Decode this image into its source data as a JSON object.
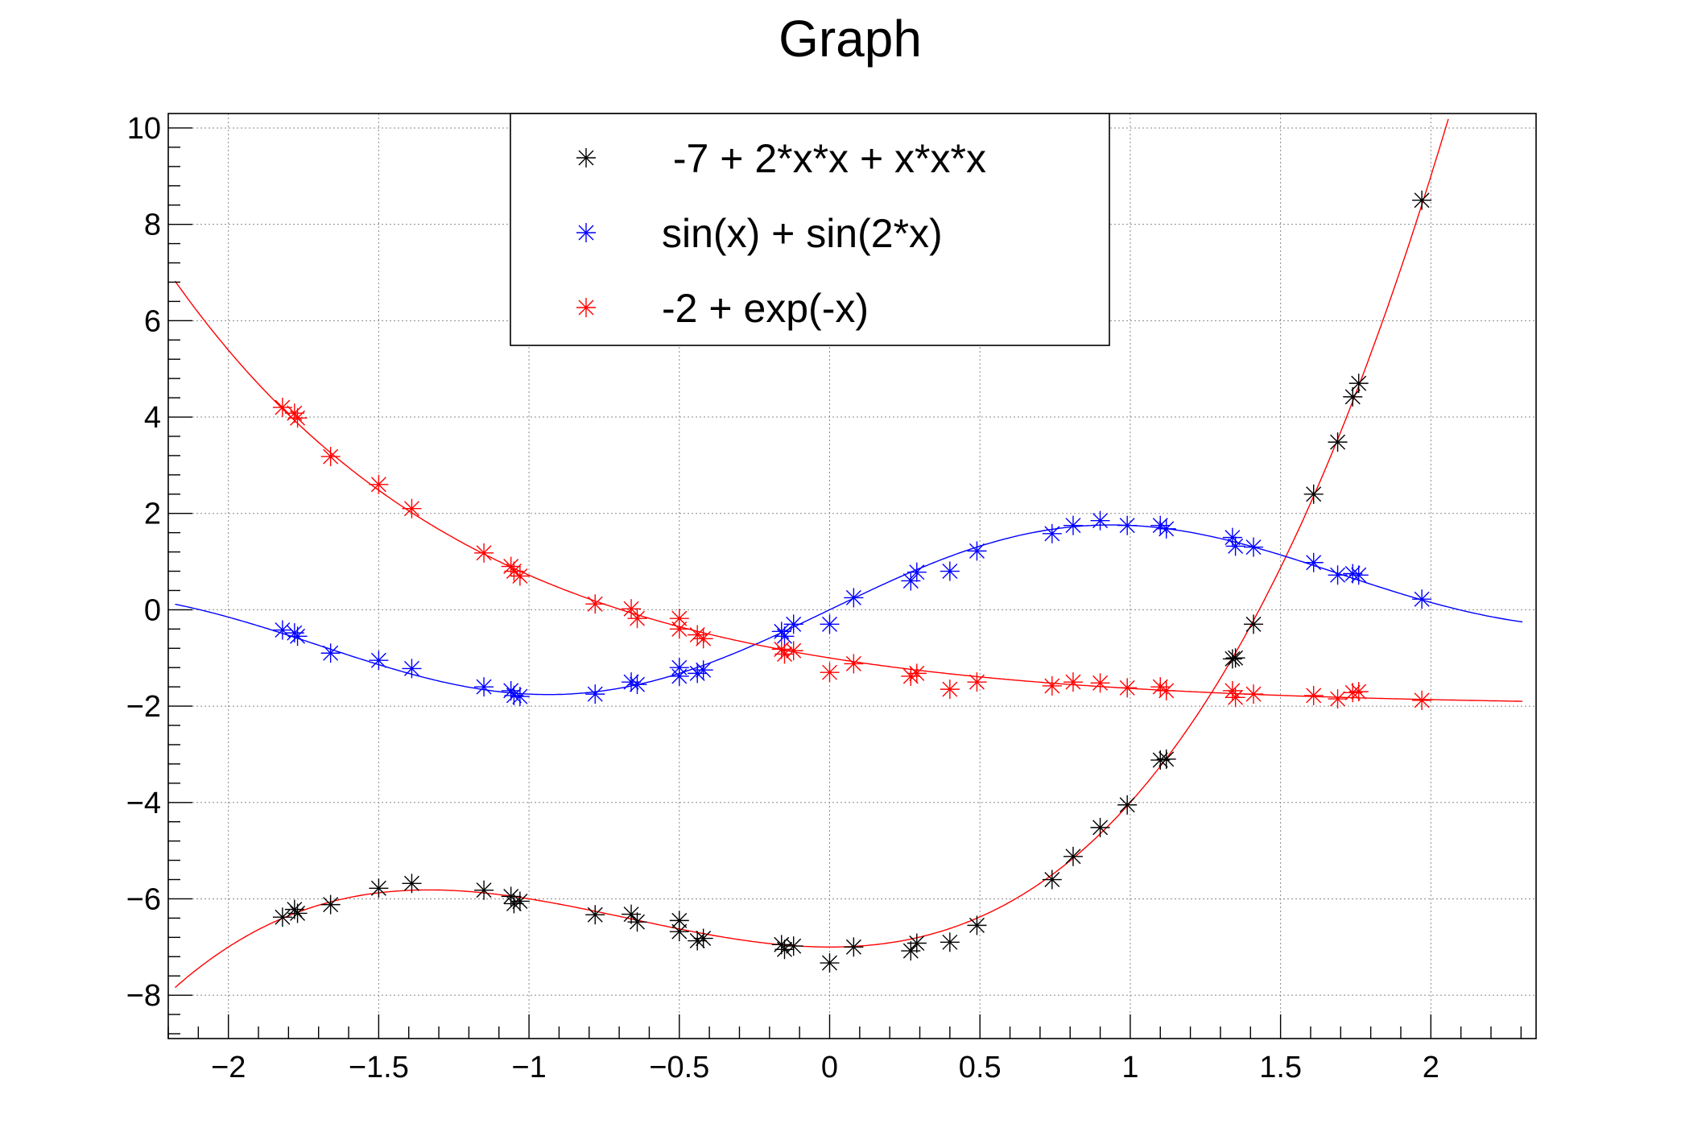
{
  "chart_data": {
    "type": "scatter",
    "title": "Graph",
    "xlabel": "",
    "ylabel": "",
    "xlim": [
      -2.2,
      2.35
    ],
    "ylim": [
      -8.9,
      10.3
    ],
    "x_ticks": [
      -2,
      -1.5,
      -1,
      -0.5,
      0,
      0.5,
      1,
      1.5,
      2
    ],
    "x_tick_labels": [
      "−2",
      "−1.5",
      "−1",
      "−0.5",
      "0",
      "0.5",
      "1",
      "1.5",
      "2"
    ],
    "y_ticks": [
      -8,
      -6,
      -4,
      -2,
      0,
      2,
      4,
      6,
      8,
      10
    ],
    "y_tick_labels": [
      "−8",
      "−6",
      "−4",
      "−2",
      "0",
      "2",
      "4",
      "6",
      "8",
      "10"
    ],
    "grid": true,
    "legend_position": "top-center",
    "series": [
      {
        "name": " -7 + 2*x*x + x*x*x",
        "color": "#000000",
        "marker": "asterisk",
        "points": [
          [
            -1.82,
            -6.38
          ],
          [
            -1.78,
            -6.22
          ],
          [
            -1.77,
            -6.3
          ],
          [
            -1.66,
            -6.12
          ],
          [
            -1.5,
            -5.78
          ],
          [
            -1.39,
            -5.68
          ],
          [
            -1.15,
            -5.82
          ],
          [
            -1.06,
            -5.95
          ],
          [
            -1.05,
            -6.1
          ],
          [
            -1.03,
            -6.05
          ],
          [
            -0.78,
            -6.33
          ],
          [
            -0.66,
            -6.32
          ],
          [
            -0.64,
            -6.48
          ],
          [
            -0.5,
            -6.45
          ],
          [
            -0.5,
            -6.68
          ],
          [
            -0.44,
            -6.87
          ],
          [
            -0.42,
            -6.82
          ],
          [
            -0.16,
            -6.95
          ],
          [
            -0.15,
            -7.05
          ],
          [
            -0.12,
            -6.98
          ],
          [
            0.0,
            -7.33
          ],
          [
            0.08,
            -7.0
          ],
          [
            0.27,
            -7.08
          ],
          [
            0.29,
            -6.92
          ],
          [
            0.4,
            -6.9
          ],
          [
            0.49,
            -6.55
          ],
          [
            0.74,
            -5.6
          ],
          [
            0.81,
            -5.12
          ],
          [
            0.9,
            -4.52
          ],
          [
            0.99,
            -4.05
          ],
          [
            1.1,
            -3.12
          ],
          [
            1.12,
            -3.1
          ],
          [
            1.34,
            -1.02
          ],
          [
            1.35,
            -1.0
          ],
          [
            1.41,
            -0.3
          ],
          [
            1.61,
            2.4
          ],
          [
            1.69,
            3.48
          ],
          [
            1.74,
            4.42
          ],
          [
            1.76,
            4.7
          ],
          [
            1.97,
            8.5
          ]
        ]
      },
      {
        "name": "sin(x) + sin(2*x)",
        "color": "#0000ff",
        "marker": "asterisk",
        "points": [
          [
            -1.82,
            -0.42
          ],
          [
            -1.78,
            -0.48
          ],
          [
            -1.77,
            -0.55
          ],
          [
            -1.66,
            -0.9
          ],
          [
            -1.5,
            -1.05
          ],
          [
            -1.39,
            -1.22
          ],
          [
            -1.15,
            -1.6
          ],
          [
            -1.06,
            -1.68
          ],
          [
            -1.05,
            -1.78
          ],
          [
            -1.03,
            -1.8
          ],
          [
            -0.78,
            -1.75
          ],
          [
            -0.66,
            -1.5
          ],
          [
            -0.64,
            -1.55
          ],
          [
            -0.5,
            -1.2
          ],
          [
            -0.5,
            -1.38
          ],
          [
            -0.44,
            -1.32
          ],
          [
            -0.42,
            -1.25
          ],
          [
            -0.16,
            -0.45
          ],
          [
            -0.15,
            -0.55
          ],
          [
            -0.12,
            -0.3
          ],
          [
            0.0,
            -0.3
          ],
          [
            0.08,
            0.25
          ],
          [
            0.27,
            0.6
          ],
          [
            0.29,
            0.78
          ],
          [
            0.4,
            0.8
          ],
          [
            0.49,
            1.22
          ],
          [
            0.74,
            1.58
          ],
          [
            0.81,
            1.75
          ],
          [
            0.9,
            1.85
          ],
          [
            0.99,
            1.75
          ],
          [
            1.1,
            1.75
          ],
          [
            1.12,
            1.68
          ],
          [
            1.34,
            1.5
          ],
          [
            1.35,
            1.32
          ],
          [
            1.41,
            1.3
          ],
          [
            1.61,
            0.98
          ],
          [
            1.69,
            0.72
          ],
          [
            1.74,
            0.75
          ],
          [
            1.76,
            0.72
          ],
          [
            1.97,
            0.22
          ]
        ]
      },
      {
        "name": "-2 + exp(-x)",
        "color": "#ff0000",
        "marker": "asterisk",
        "points": [
          [
            -1.82,
            4.2
          ],
          [
            -1.78,
            4.08
          ],
          [
            -1.77,
            3.98
          ],
          [
            -1.66,
            3.18
          ],
          [
            -1.5,
            2.6
          ],
          [
            -1.39,
            2.1
          ],
          [
            -1.15,
            1.18
          ],
          [
            -1.06,
            0.9
          ],
          [
            -1.05,
            0.8
          ],
          [
            -1.03,
            0.7
          ],
          [
            -0.78,
            0.12
          ],
          [
            -0.66,
            0.02
          ],
          [
            -0.64,
            -0.18
          ],
          [
            -0.5,
            -0.18
          ],
          [
            -0.5,
            -0.4
          ],
          [
            -0.44,
            -0.52
          ],
          [
            -0.42,
            -0.6
          ],
          [
            -0.16,
            -0.82
          ],
          [
            -0.15,
            -0.92
          ],
          [
            -0.12,
            -0.85
          ],
          [
            0.0,
            -1.3
          ],
          [
            0.08,
            -1.12
          ],
          [
            0.27,
            -1.38
          ],
          [
            0.29,
            -1.32
          ],
          [
            0.4,
            -1.65
          ],
          [
            0.49,
            -1.5
          ],
          [
            0.74,
            -1.58
          ],
          [
            0.81,
            -1.5
          ],
          [
            0.9,
            -1.52
          ],
          [
            0.99,
            -1.62
          ],
          [
            1.1,
            -1.6
          ],
          [
            1.12,
            -1.68
          ],
          [
            1.34,
            -1.68
          ],
          [
            1.35,
            -1.82
          ],
          [
            1.41,
            -1.75
          ],
          [
            1.61,
            -1.78
          ],
          [
            1.69,
            -1.85
          ],
          [
            1.74,
            -1.72
          ],
          [
            1.76,
            -1.7
          ],
          [
            1.97,
            -1.88
          ]
        ]
      }
    ],
    "fit_curves": [
      {
        "function": "-7 + 2*x*x + x*x*x",
        "color": "#ff0000"
      },
      {
        "function": "sin(x) + sin(2*x)",
        "color": "#0000ff"
      },
      {
        "function": "-2 + exp(-x)",
        "color": "#ff0000"
      }
    ]
  }
}
